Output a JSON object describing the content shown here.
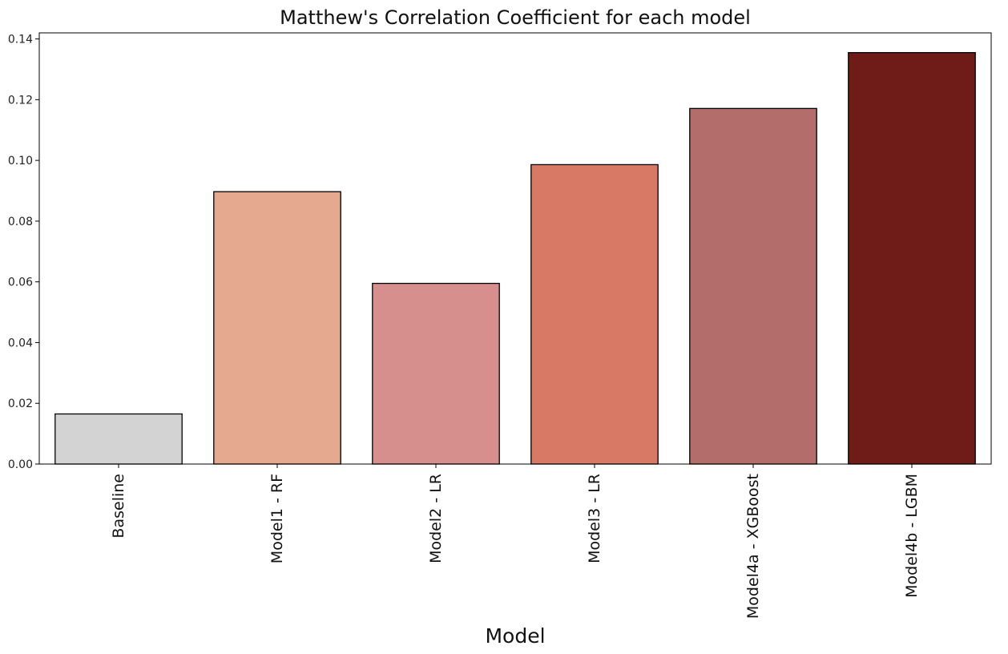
{
  "chart_data": {
    "type": "bar",
    "title": "Matthew's Correlation Coefficient for each model",
    "xlabel": "Model",
    "ylabel": "",
    "ylim": [
      0,
      0.142
    ],
    "yticks": [
      0.0,
      0.02,
      0.04,
      0.06,
      0.08,
      0.1,
      0.12,
      0.14
    ],
    "ytick_labels": [
      "0.00",
      "0.02",
      "0.04",
      "0.06",
      "0.08",
      "0.10",
      "0.12",
      "0.14"
    ],
    "categories": [
      "Baseline",
      "Model1 - RF",
      "Model2 - LR",
      "Model3 - LR",
      "Model4a - XGBoost",
      "Model4b - LGBM"
    ],
    "values": [
      0.0165,
      0.0897,
      0.0595,
      0.0986,
      0.1171,
      0.1355
    ],
    "colors": [
      "#d3d3d3",
      "#e4a98f",
      "#d78f8d",
      "#d87966",
      "#b36e6b",
      "#6f1c19"
    ],
    "grid": false,
    "legend": "none"
  }
}
